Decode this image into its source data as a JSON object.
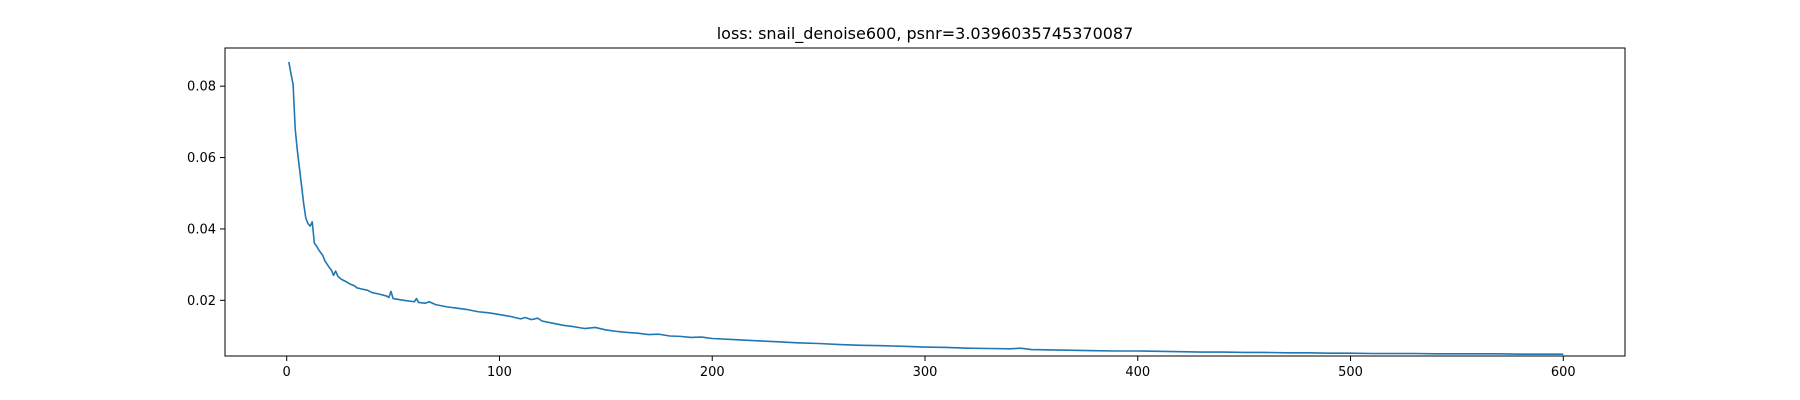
{
  "chart_data": {
    "type": "line",
    "title": "loss: snail_denoise600, psnr=3.0396035745370087",
    "xlabel": "",
    "ylabel": "",
    "xlim": [
      -29,
      629
    ],
    "ylim": [
      0.0044,
      0.0907
    ],
    "xticks": [
      0,
      100,
      200,
      300,
      400,
      500,
      600
    ],
    "yticks": [
      0.02,
      0.04,
      0.06,
      0.08
    ],
    "grid": false,
    "color": "#1f77b4",
    "series": [
      {
        "x": [
          1,
          2,
          3,
          4,
          5,
          6,
          7,
          8,
          9,
          10,
          11,
          12,
          13,
          14,
          15,
          17,
          18,
          20,
          21,
          22,
          23,
          24,
          25,
          26,
          28,
          30,
          32,
          33,
          35,
          38,
          40,
          43,
          47,
          48,
          49,
          50,
          55,
          60,
          61,
          62,
          65,
          67,
          70,
          75,
          80,
          85,
          90,
          95,
          100,
          105,
          110,
          112,
          115,
          118,
          120,
          125,
          130,
          135,
          140,
          145,
          150,
          155,
          160,
          165,
          170,
          175,
          180,
          185,
          190,
          195,
          200,
          210,
          220,
          230,
          240,
          250,
          260,
          270,
          280,
          290,
          300,
          310,
          320,
          330,
          340,
          345,
          350,
          360,
          370,
          380,
          390,
          400,
          410,
          420,
          430,
          440,
          450,
          460,
          470,
          480,
          490,
          500,
          510,
          520,
          530,
          540,
          550,
          560,
          570,
          580,
          590,
          600
        ],
        "y": [
          0.0868,
          0.0835,
          0.0805,
          0.068,
          0.062,
          0.057,
          0.052,
          0.047,
          0.043,
          0.0415,
          0.0408,
          0.042,
          0.036,
          0.0352,
          0.0342,
          0.0325,
          0.031,
          0.0292,
          0.0285,
          0.027,
          0.0282,
          0.0268,
          0.0262,
          0.0258,
          0.0252,
          0.0245,
          0.024,
          0.0235,
          0.0232,
          0.0228,
          0.0222,
          0.0218,
          0.0212,
          0.0208,
          0.0225,
          0.0205,
          0.02,
          0.0196,
          0.0205,
          0.0194,
          0.0192,
          0.0196,
          0.0188,
          0.0182,
          0.0178,
          0.0174,
          0.0168,
          0.0165,
          0.016,
          0.0155,
          0.0148,
          0.0152,
          0.0146,
          0.015,
          0.0142,
          0.0136,
          0.013,
          0.0126,
          0.0121,
          0.0124,
          0.0117,
          0.0113,
          0.011,
          0.0108,
          0.0104,
          0.0105,
          0.01,
          0.0099,
          0.0096,
          0.0097,
          0.0093,
          0.009,
          0.0087,
          0.0084,
          0.0081,
          0.0079,
          0.0076,
          0.0074,
          0.0073,
          0.0071,
          0.0069,
          0.0068,
          0.0066,
          0.0065,
          0.0064,
          0.0066,
          0.0062,
          0.0061,
          0.006,
          0.0059,
          0.0058,
          0.0058,
          0.0057,
          0.0056,
          0.0055,
          0.0055,
          0.0054,
          0.0054,
          0.0053,
          0.0053,
          0.0052,
          0.0052,
          0.0051,
          0.0051,
          0.0051,
          0.005,
          0.005,
          0.005,
          0.005,
          0.0049,
          0.0049,
          0.0049
        ]
      }
    ]
  }
}
